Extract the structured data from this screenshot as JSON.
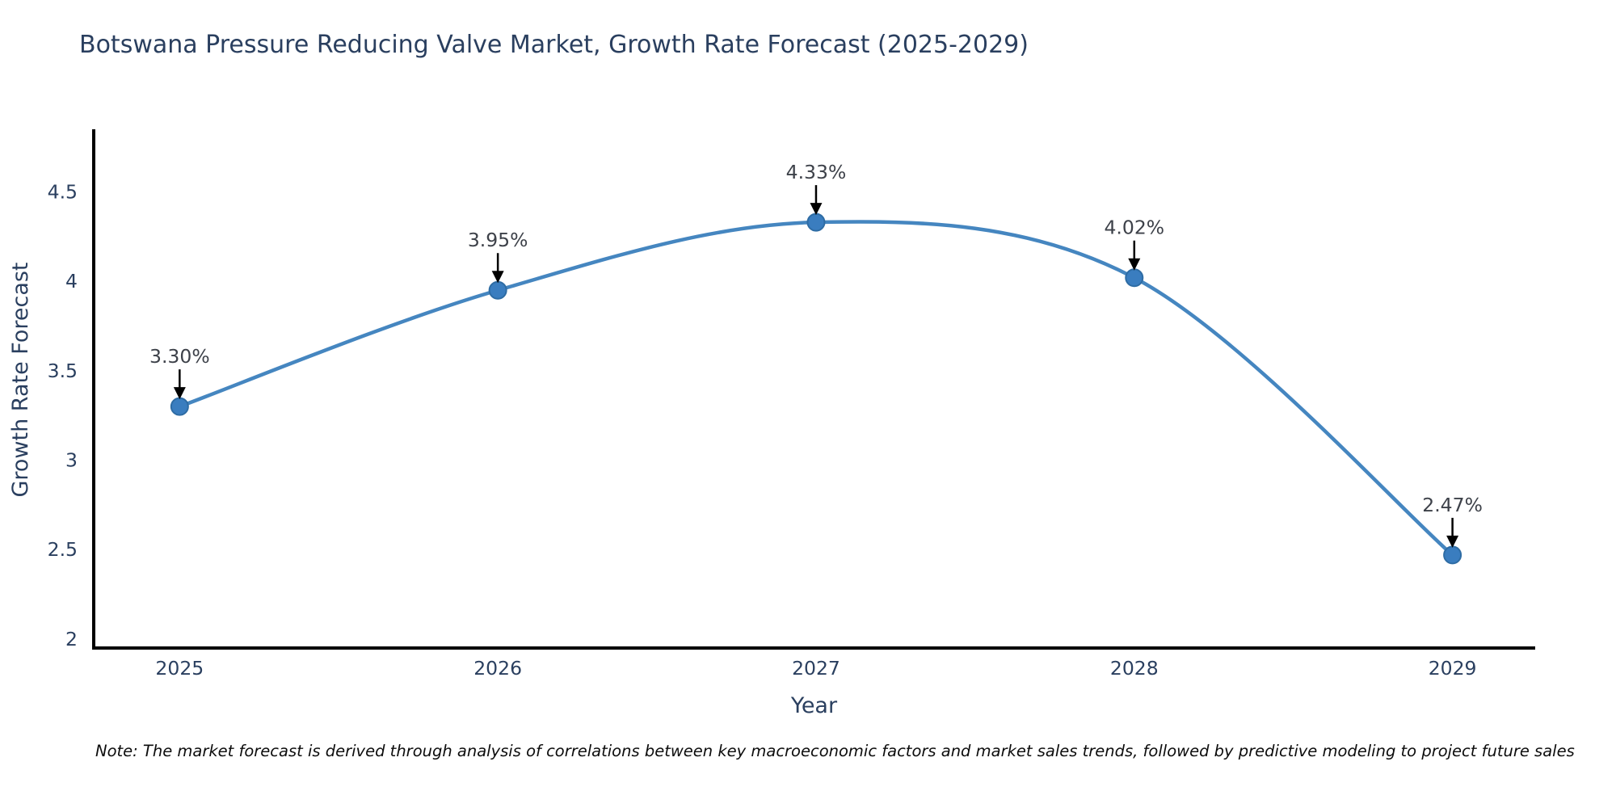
{
  "title": "Botswana Pressure Reducing Valve Market, Growth Rate Forecast (2025-2029)",
  "note": "Note: The market forecast is derived through analysis of correlations between key macroeconomic factors and market sales trends, followed by predictive modeling to project future sales",
  "chart_data": {
    "type": "line",
    "line_shape": "spline",
    "title": "Botswana Pressure Reducing Valve Market, Growth Rate Forecast (2025-2029)",
    "xlabel": "Year",
    "ylabel": "Growth Rate Forecast",
    "x": [
      2025,
      2026,
      2027,
      2028,
      2029
    ],
    "values": [
      3.3,
      3.95,
      4.33,
      4.02,
      2.47
    ],
    "point_labels": [
      "3.30%",
      "3.95%",
      "4.33%",
      "4.02%",
      "2.47%"
    ],
    "x_ticks": [
      "2025",
      "2026",
      "2027",
      "2028",
      "2029"
    ],
    "y_ticks": [
      "2",
      "2.5",
      "3",
      "3.5",
      "4",
      "4.5"
    ],
    "y_tick_values": [
      2,
      2.5,
      3,
      3.5,
      4,
      4.5
    ],
    "xlim": [
      2024.73,
      2029.26
    ],
    "ylim": [
      1.95,
      4.85
    ],
    "grid": false,
    "legend": "none",
    "colors": {
      "line": "#4586c0",
      "marker_fill": "#3a7dbf",
      "marker_edge": "#2e6ca4",
      "arrow": "#000000",
      "axis_line": "#000000",
      "title_text": "#2a3f5f",
      "tick_text": "#2a3f5f",
      "annotation_text": "#3d4149",
      "background": "#ffffff"
    }
  }
}
